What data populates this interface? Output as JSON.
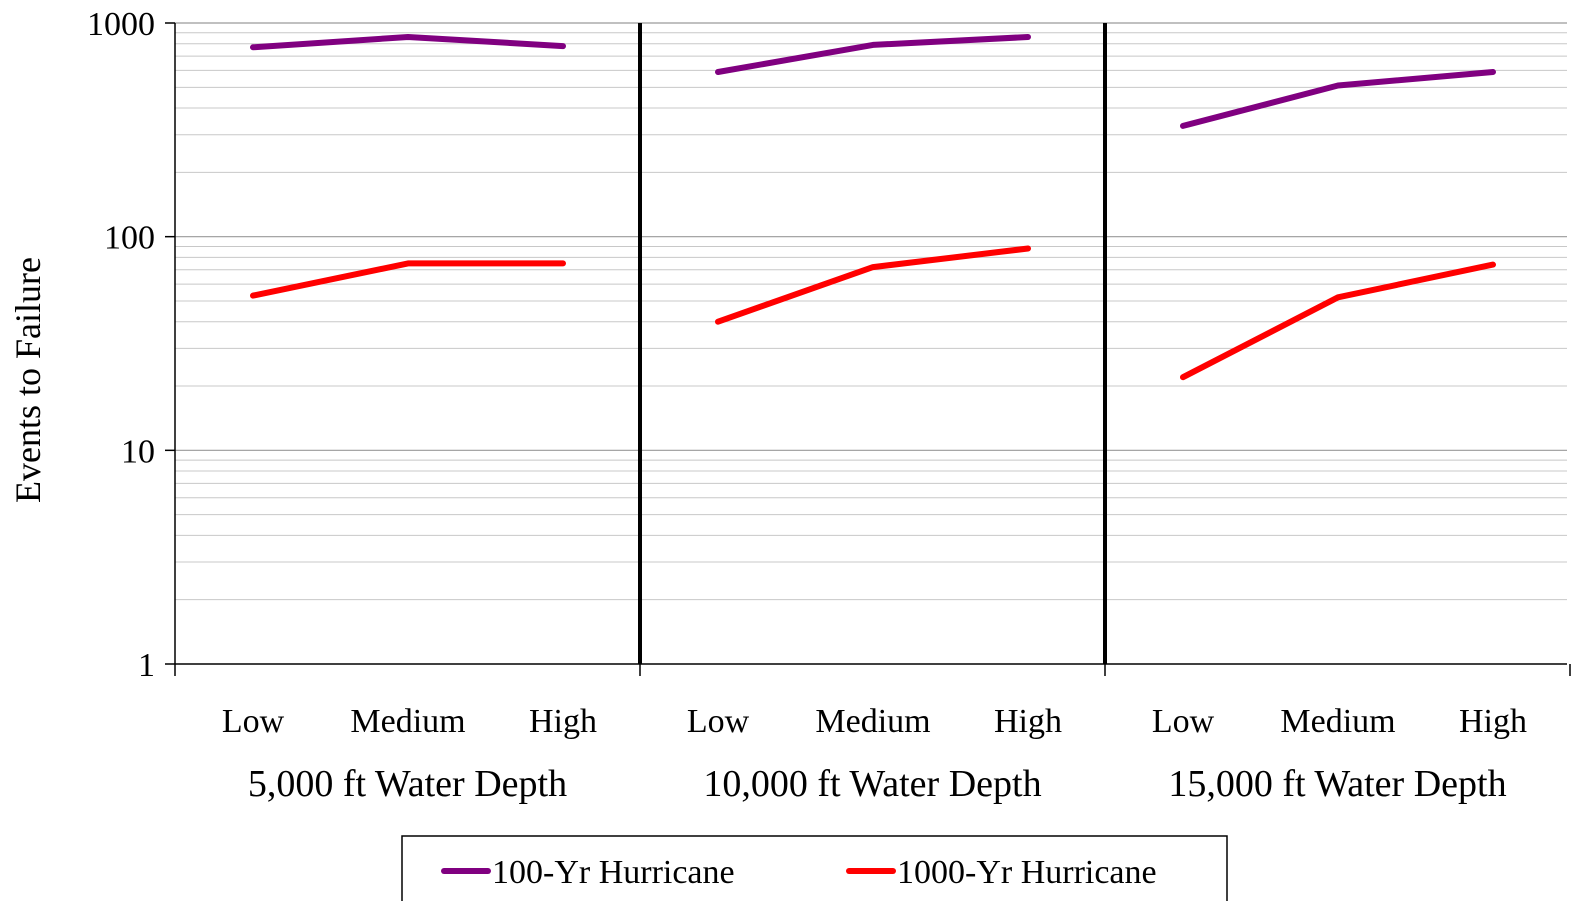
{
  "chart_data": {
    "type": "line",
    "ylabel": "Events to Failure",
    "xlabel": "",
    "yscale": "log",
    "ylim": [
      1,
      1000
    ],
    "yticks": [
      "1",
      "10",
      "100",
      "1000"
    ],
    "grid": true,
    "legend": "bottom",
    "groups": [
      {
        "label": "5,000 ft Water Depth",
        "categories": [
          "Low",
          "Medium",
          "High"
        ]
      },
      {
        "label": "10,000 ft Water Depth",
        "categories": [
          "Low",
          "Medium",
          "High"
        ]
      },
      {
        "label": "15,000 ft Water Depth",
        "categories": [
          "Low",
          "Medium",
          "High"
        ]
      }
    ],
    "series": [
      {
        "name": "100-Yr Hurricane",
        "color": "#800080",
        "values": [
          [
            770,
            860,
            780
          ],
          [
            590,
            790,
            860
          ],
          [
            330,
            510,
            590
          ]
        ]
      },
      {
        "name": "1000-Yr Hurricane",
        "color": "#ff0000",
        "values": [
          [
            53,
            75,
            75
          ],
          [
            40,
            72,
            88
          ],
          [
            22,
            52,
            74
          ]
        ]
      }
    ]
  }
}
